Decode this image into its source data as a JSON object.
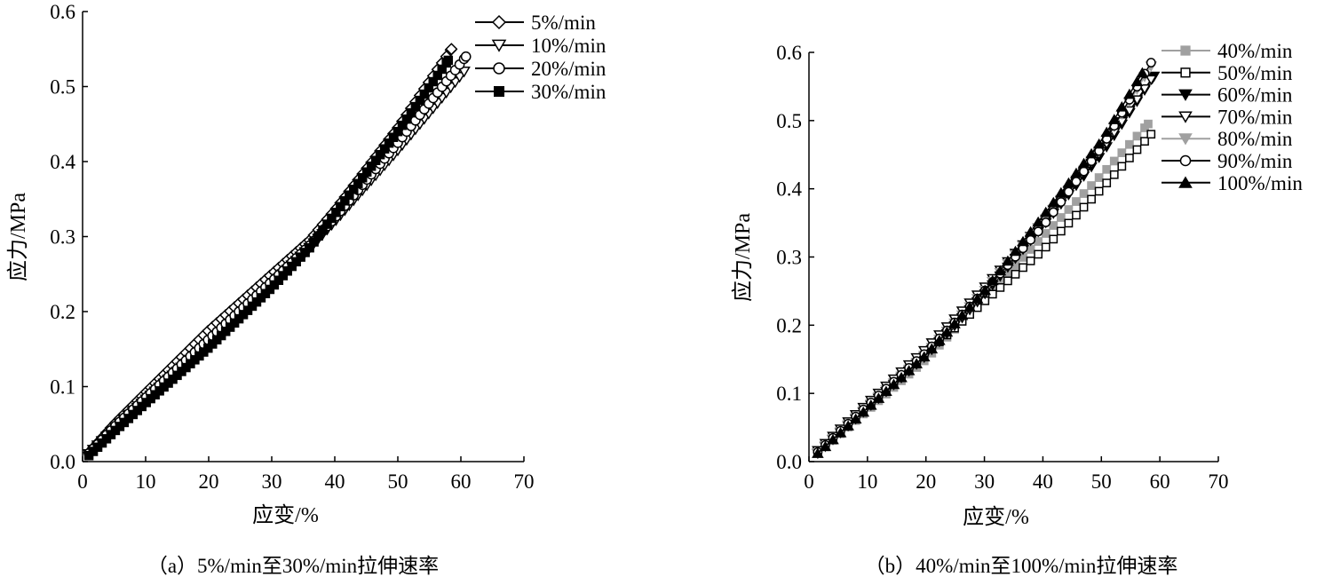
{
  "chart_data": [
    {
      "type": "scatter",
      "title": "",
      "caption": "（a）5%/min至30%/min拉伸速率",
      "xlabel": "应变/%",
      "ylabel": "应力/MPa",
      "xlim": [
        0,
        70
      ],
      "ylim": [
        0,
        0.6
      ],
      "xticks": [
        "0",
        "10",
        "20",
        "30",
        "40",
        "50",
        "60",
        "70"
      ],
      "yticks": [
        "0.0",
        "0.1",
        "0.2",
        "0.3",
        "0.4",
        "0.5",
        "0.6"
      ],
      "legend_position": "top-right",
      "series": [
        {
          "name": "5%/min",
          "marker": "diamond-open",
          "color": "#000000",
          "points": [
            [
              1,
              0.012
            ],
            [
              5,
              0.05
            ],
            [
              10,
              0.092
            ],
            [
              20,
              0.175
            ],
            [
              30,
              0.25
            ],
            [
              36,
              0.295
            ],
            [
              40,
              0.335
            ],
            [
              50,
              0.445
            ],
            [
              58.5,
              0.55
            ]
          ]
        },
        {
          "name": "10%/min",
          "marker": "triangle-down-open",
          "color": "#000000",
          "points": [
            [
              1,
              0.01
            ],
            [
              5,
              0.043
            ],
            [
              10,
              0.082
            ],
            [
              20,
              0.158
            ],
            [
              30,
              0.235
            ],
            [
              36,
              0.285
            ],
            [
              40,
              0.32
            ],
            [
              50,
              0.415
            ],
            [
              60.5,
              0.52
            ]
          ]
        },
        {
          "name": "20%/min",
          "marker": "circle-open",
          "color": "#000000",
          "points": [
            [
              1,
              0.011
            ],
            [
              5,
              0.046
            ],
            [
              10,
              0.085
            ],
            [
              20,
              0.163
            ],
            [
              30,
              0.24
            ],
            [
              36,
              0.288
            ],
            [
              40,
              0.325
            ],
            [
              50,
              0.425
            ],
            [
              60.8,
              0.54
            ]
          ]
        },
        {
          "name": "30%/min",
          "marker": "square-filled",
          "color": "#000000",
          "points": [
            [
              1,
              0.008
            ],
            [
              5,
              0.04
            ],
            [
              10,
              0.078
            ],
            [
              20,
              0.152
            ],
            [
              30,
              0.232
            ],
            [
              36,
              0.285
            ],
            [
              40,
              0.33
            ],
            [
              50,
              0.44
            ],
            [
              58,
              0.535
            ]
          ]
        }
      ]
    },
    {
      "type": "scatter",
      "title": "",
      "caption": "（b）40%/min至100%/min拉伸速率",
      "xlabel": "应变/%",
      "ylabel": "应力/MPa",
      "xlim": [
        0,
        70
      ],
      "ylim": [
        0,
        0.6
      ],
      "xticks": [
        "0",
        "10",
        "20",
        "30",
        "40",
        "50",
        "60",
        "70"
      ],
      "yticks": [
        "0.0",
        "0.1",
        "0.2",
        "0.3",
        "0.4",
        "0.5",
        "0.6"
      ],
      "legend_position": "top-right",
      "series": [
        {
          "name": "40%/min",
          "marker": "square-filled",
          "color": "#a0a0a0",
          "points": [
            [
              1.5,
              0.012
            ],
            [
              10,
              0.075
            ],
            [
              20,
              0.15
            ],
            [
              30,
              0.24
            ],
            [
              40,
              0.33
            ],
            [
              50,
              0.42
            ],
            [
              58,
              0.495
            ]
          ]
        },
        {
          "name": "50%/min",
          "marker": "square-open",
          "color": "#000000",
          "points": [
            [
              1.5,
              0.015
            ],
            [
              10,
              0.082
            ],
            [
              20,
              0.158
            ],
            [
              30,
              0.235
            ],
            [
              40,
              0.31
            ],
            [
              50,
              0.4
            ],
            [
              58.5,
              0.48
            ]
          ]
        },
        {
          "name": "60%/min",
          "marker": "triangle-down-filled",
          "color": "#000000",
          "points": [
            [
              1.5,
              0.012
            ],
            [
              10,
              0.078
            ],
            [
              20,
              0.155
            ],
            [
              30,
              0.245
            ],
            [
              40,
              0.345
            ],
            [
              50,
              0.45
            ],
            [
              59,
              0.565
            ]
          ]
        },
        {
          "name": "70%/min",
          "marker": "triangle-down-open",
          "color": "#000000",
          "points": [
            [
              1.5,
              0.016
            ],
            [
              10,
              0.085
            ],
            [
              20,
              0.165
            ],
            [
              30,
              0.255
            ],
            [
              40,
              0.35
            ],
            [
              50,
              0.455
            ],
            [
              58.5,
              0.56
            ]
          ]
        },
        {
          "name": "80%/min",
          "marker": "triangle-down-filled",
          "color": "#a0a0a0",
          "points": [
            [
              1.5,
              0.013
            ],
            [
              10,
              0.08
            ],
            [
              20,
              0.158
            ],
            [
              30,
              0.25
            ],
            [
              40,
              0.35
            ],
            [
              50,
              0.46
            ],
            [
              58.5,
              0.58
            ]
          ]
        },
        {
          "name": "90%/min",
          "marker": "circle-open",
          "color": "#000000",
          "points": [
            [
              1.5,
              0.014
            ],
            [
              10,
              0.082
            ],
            [
              20,
              0.16
            ],
            [
              30,
              0.25
            ],
            [
              40,
              0.345
            ],
            [
              50,
              0.46
            ],
            [
              58.5,
              0.585
            ]
          ]
        },
        {
          "name": "100%/min",
          "marker": "triangle-up-filled",
          "color": "#000000",
          "points": [
            [
              1.5,
              0.012
            ],
            [
              10,
              0.078
            ],
            [
              20,
              0.156
            ],
            [
              30,
              0.25
            ],
            [
              40,
              0.36
            ],
            [
              50,
              0.47
            ],
            [
              57,
              0.57
            ]
          ]
        }
      ]
    }
  ]
}
